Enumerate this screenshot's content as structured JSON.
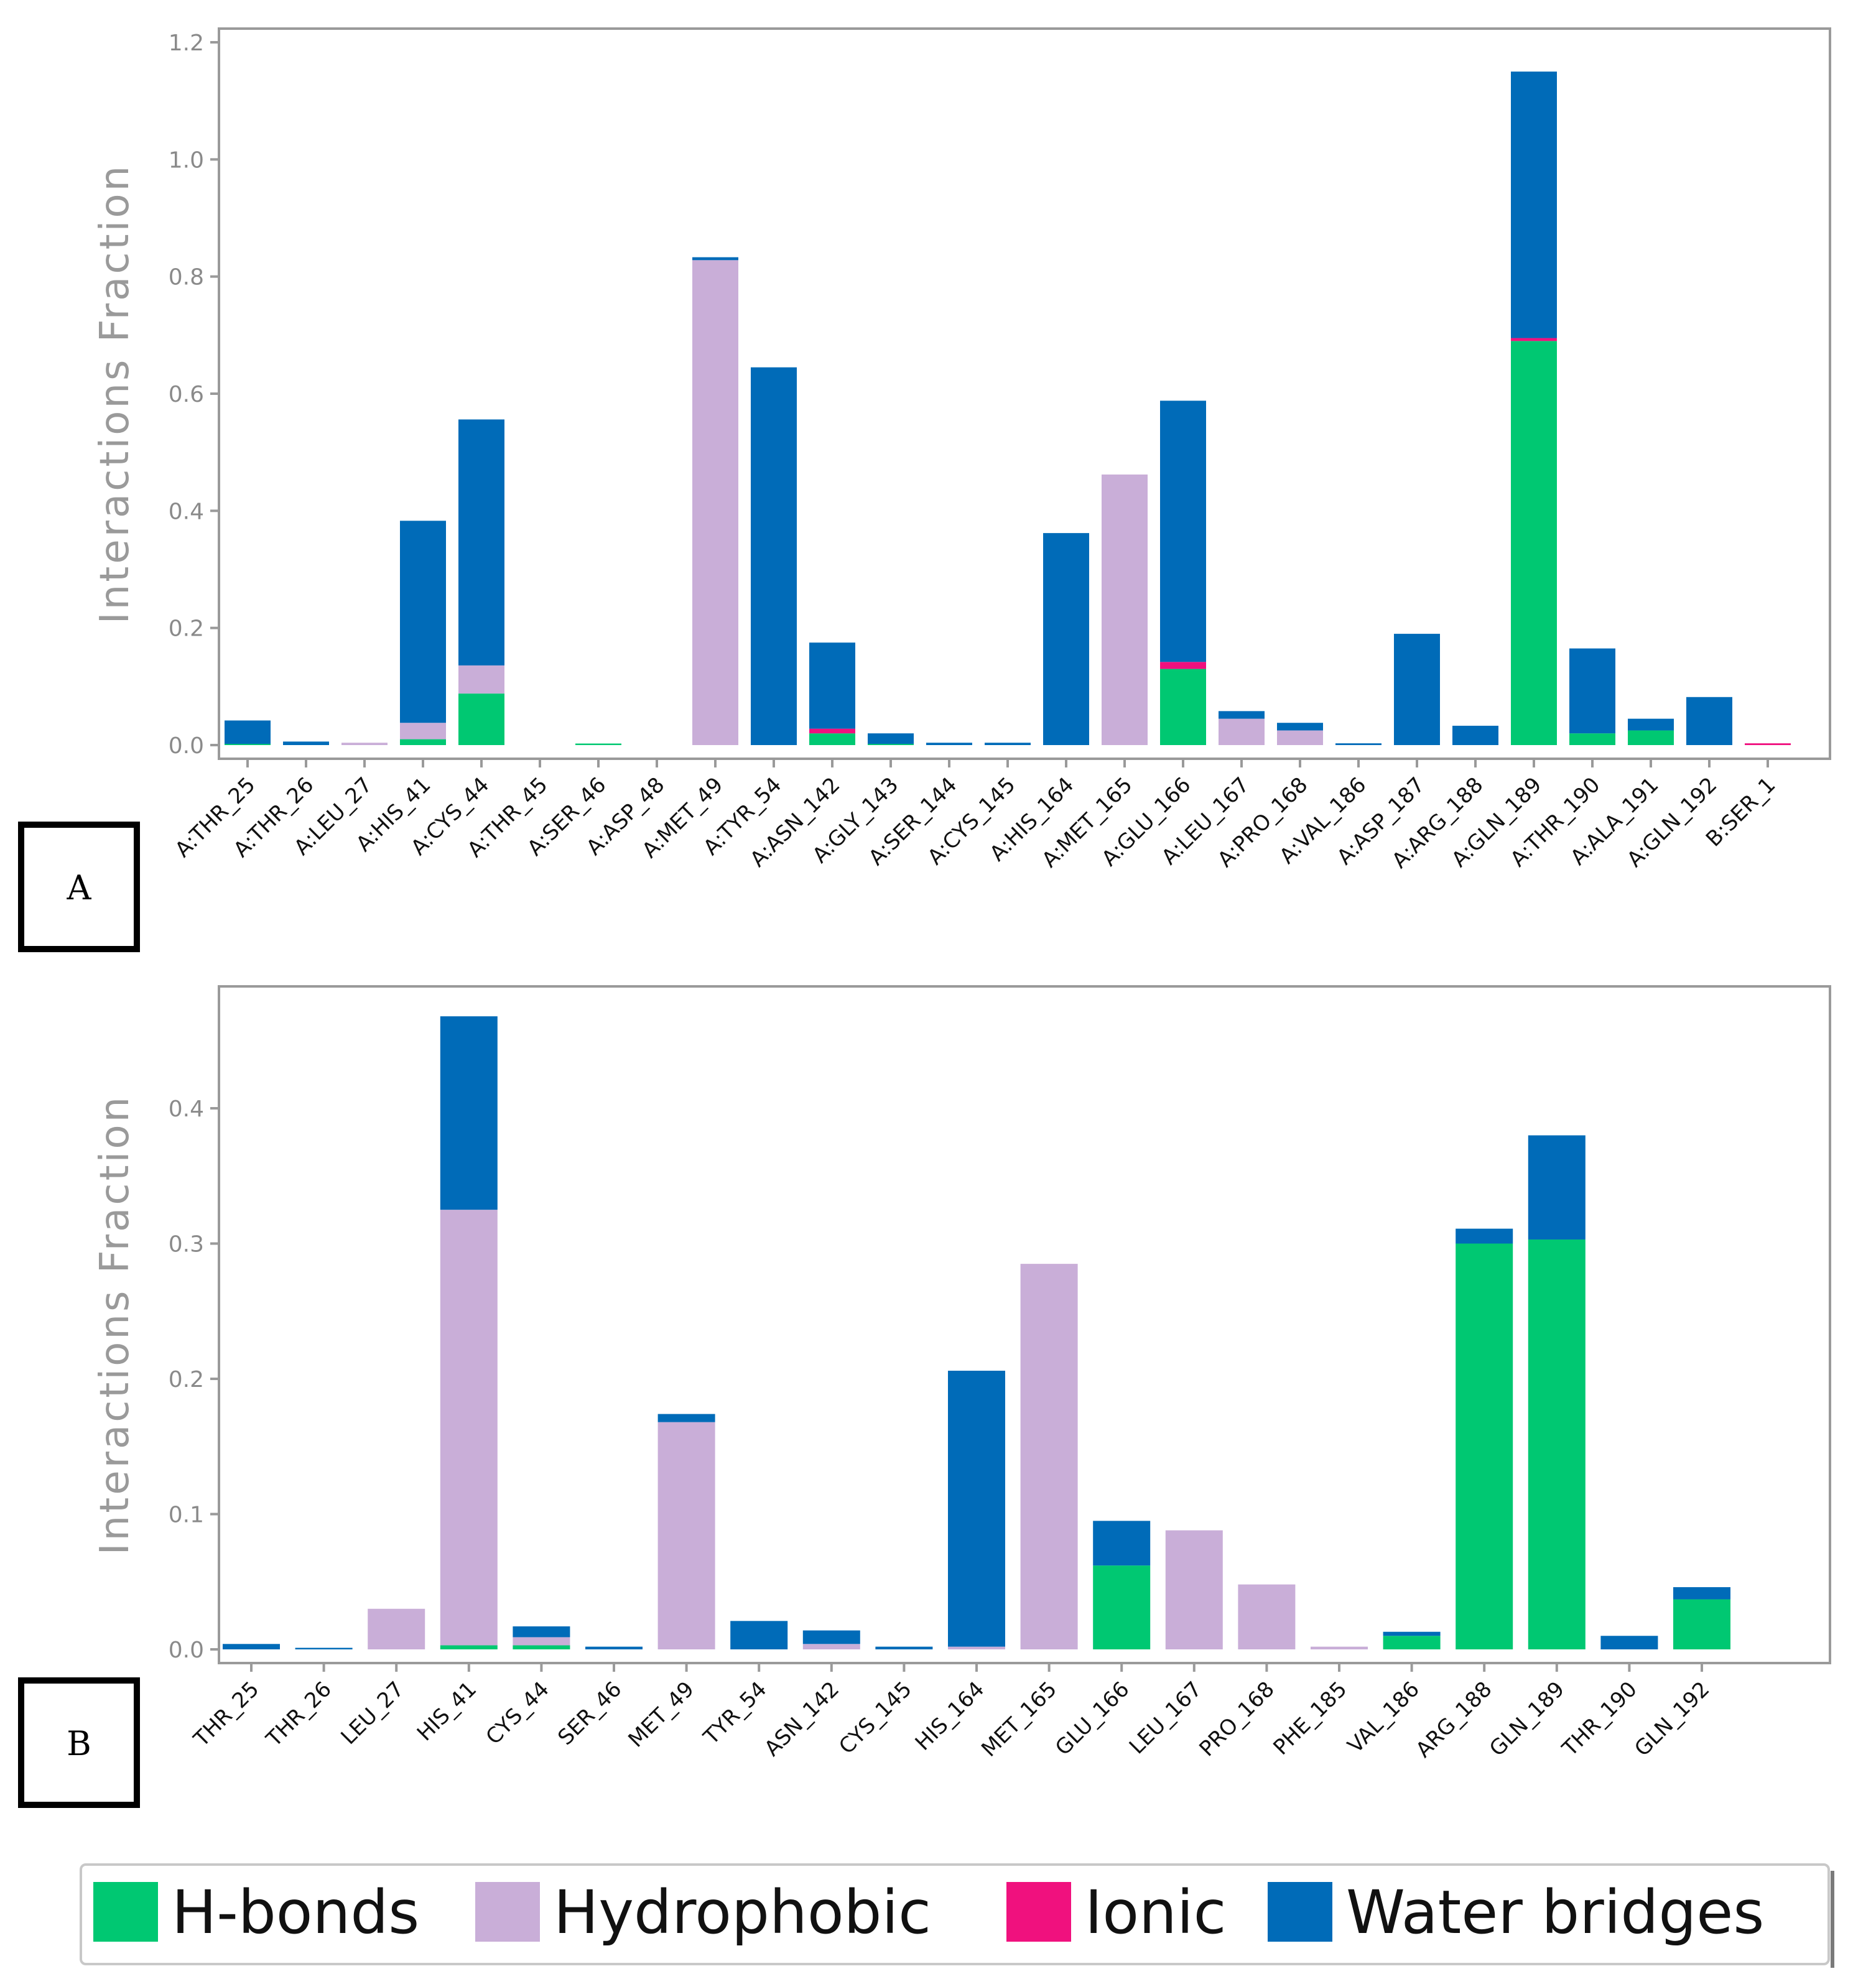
{
  "colors": {
    "hbonds": "#00c872",
    "hydrophobic": "#c9aed8",
    "ionic": "#f0117e",
    "water": "#006bb8"
  },
  "chart_data": [
    {
      "type": "bar",
      "stacked": true,
      "panel_label": "A",
      "ylabel": "Interactions Fraction",
      "ylim": [
        0,
        1.2
      ],
      "yticks": [
        "0.0",
        "0.2",
        "0.4",
        "0.6",
        "0.8",
        "1.0",
        "1.2"
      ],
      "grid": false,
      "categories": [
        "A:THR_25",
        "A:THR_26",
        "A:LEU_27",
        "A:HIS_41",
        "A:CYS_44",
        "A:THR_45",
        "A:SER_46",
        "A:ASP_48",
        "A:MET_49",
        "A:TYR_54",
        "A:ASN_142",
        "A:GLY_143",
        "A:SER_144",
        "A:CYS_145",
        "A:HIS_164",
        "A:MET_165",
        "A:GLU_166",
        "A:LEU_167",
        "A:PRO_168",
        "A:VAL_186",
        "A:ASP_187",
        "A:ARG_188",
        "A:GLN_189",
        "A:THR_190",
        "A:ALA_191",
        "A:GLN_192",
        "B:SER_1"
      ],
      "series": [
        {
          "name": "H-bonds",
          "values": [
            0.002,
            0,
            0,
            0.01,
            0.088,
            0,
            0.002,
            0,
            0,
            0,
            0.02,
            0.002,
            0,
            0,
            0,
            0,
            0.13,
            0,
            0,
            0,
            0,
            0,
            0.69,
            0.02,
            0.025,
            0,
            0
          ]
        },
        {
          "name": "Hydrophobic",
          "values": [
            0,
            0,
            0.004,
            0.028,
            0.048,
            0,
            0,
            0,
            0.828,
            0,
            0,
            0,
            0,
            0,
            0,
            0.462,
            0,
            0.045,
            0.025,
            0,
            0,
            0,
            0,
            0,
            0,
            0,
            0
          ]
        },
        {
          "name": "Ionic",
          "values": [
            0,
            0,
            0,
            0,
            0,
            0,
            0,
            0,
            0,
            0,
            0.008,
            0,
            0,
            0,
            0,
            0,
            0.012,
            0,
            0,
            0,
            0,
            0,
            0.005,
            0,
            0,
            0,
            0.003
          ]
        },
        {
          "name": "Water bridges",
          "values": [
            0.04,
            0.006,
            0,
            0.345,
            0.42,
            0,
            0,
            0,
            0.005,
            0.645,
            0.147,
            0.018,
            0.004,
            0.004,
            0.362,
            0,
            0.446,
            0.013,
            0.013,
            0.003,
            0.19,
            0.033,
            0.455,
            0.145,
            0.02,
            0.082,
            0
          ]
        }
      ]
    },
    {
      "type": "bar",
      "stacked": true,
      "panel_label": "B",
      "ylabel": "Interactions Fraction",
      "ylim": [
        0,
        0.48
      ],
      "yticks": [
        "0.0",
        "0.1",
        "0.2",
        "0.3",
        "0.4"
      ],
      "grid": false,
      "categories": [
        "THR_25",
        "THR_26",
        "LEU_27",
        "HIS_41",
        "CYS_44",
        "SER_46",
        "MET_49",
        "TYR_54",
        "ASN_142",
        "CYS_145",
        "HIS_164",
        "MET_165",
        "GLU_166",
        "LEU_167",
        "PRO_168",
        "PHE_185",
        "VAL_186",
        "ARG_188",
        "GLN_189",
        "THR_190",
        "GLN_192"
      ],
      "series": [
        {
          "name": "H-bonds",
          "values": [
            0,
            0,
            0,
            0.003,
            0.003,
            0,
            0,
            0,
            0,
            0,
            0,
            0,
            0.062,
            0,
            0,
            0,
            0.01,
            0.3,
            0.303,
            0,
            0.037
          ]
        },
        {
          "name": "Hydrophobic",
          "values": [
            0,
            0,
            0.03,
            0.322,
            0.006,
            0,
            0.168,
            0,
            0.004,
            0,
            0.002,
            0.285,
            0,
            0.088,
            0.048,
            0.002,
            0,
            0,
            0,
            0,
            0
          ]
        },
        {
          "name": "Ionic",
          "values": [
            0,
            0,
            0,
            0,
            0,
            0,
            0,
            0,
            0,
            0,
            0,
            0,
            0,
            0,
            0,
            0,
            0,
            0,
            0,
            0,
            0
          ]
        },
        {
          "name": "Water bridges",
          "values": [
            0.004,
            0.001,
            0,
            0.143,
            0.008,
            0.002,
            0.006,
            0.021,
            0.01,
            0.002,
            0.204,
            0,
            0.033,
            0,
            0,
            0,
            0.003,
            0.011,
            0.077,
            0.01,
            0.009
          ]
        }
      ]
    }
  ],
  "legend": {
    "items": [
      {
        "label": "H-bonds",
        "key": "hbonds"
      },
      {
        "label": "Hydrophobic",
        "key": "hydrophobic"
      },
      {
        "label": "Ionic",
        "key": "ionic"
      },
      {
        "label": "Water bridges",
        "key": "water"
      }
    ]
  }
}
